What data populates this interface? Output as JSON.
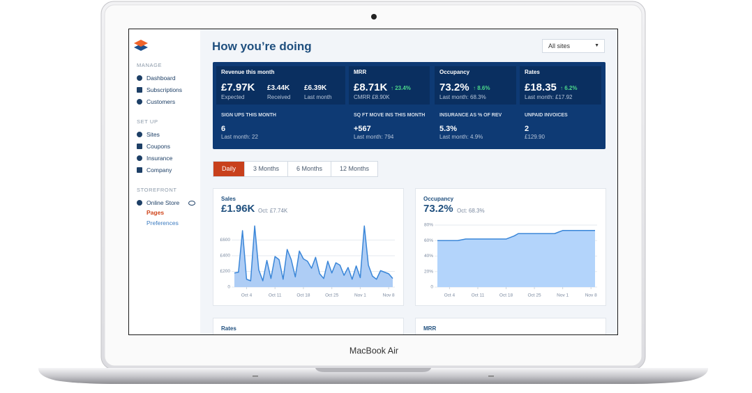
{
  "device_label": "MacBook Air",
  "sidebar": {
    "sections": [
      {
        "heading": "MANAGE",
        "items": [
          "Dashboard",
          "Subscriptions",
          "Customers"
        ]
      },
      {
        "heading": "SET UP",
        "items": [
          "Sites",
          "Coupons",
          "Insurance",
          "Company"
        ]
      },
      {
        "heading": "STOREFRONT",
        "items": [
          "Online Store"
        ],
        "subitems": [
          "Pages",
          "Preferences"
        ],
        "active_subitem": 0
      }
    ]
  },
  "header": {
    "title": "How you’re doing",
    "site_select": "All sites"
  },
  "kpis": {
    "top": [
      {
        "label": "Revenue this month",
        "figures": [
          {
            "value": "£7.97K",
            "caption": "Expected"
          },
          {
            "value": "£3.44K",
            "caption": "Received"
          },
          {
            "value": "£6.39K",
            "caption": "Last month"
          }
        ]
      },
      {
        "label": "MRR",
        "value": "£8.71K",
        "change": "↑ 23.4%",
        "sub": "CMRR £8.90K"
      },
      {
        "label": "Occupancy",
        "value": "73.2%",
        "change": "↑ 8.6%",
        "sub": "Last month: 68.3%"
      },
      {
        "label": "Rates",
        "value": "£18.35",
        "change": "↑ 6.2%",
        "sub": "Last month: £17.92"
      }
    ],
    "bottom": [
      {
        "label": "SIGN UPS THIS MONTH",
        "value": "6",
        "sub": "Last month: 22"
      },
      {
        "label": "SQ FT MOVE INS THIS MONTH",
        "value": "+567",
        "sub": "Last month: 794"
      },
      {
        "label": "INSURANCE AS % OF REV",
        "value": "5.3%",
        "sub": "Last month: 4.9%"
      },
      {
        "label": "UNPAID INVOICES",
        "value": "2",
        "sub": "£129.90"
      }
    ]
  },
  "tabs": [
    "Daily",
    "3 Months",
    "6 Months",
    "12 Months"
  ],
  "active_tab": 0,
  "cards": [
    {
      "title": "Sales",
      "value": "£1.96K",
      "compare": "Oct: £7.74K",
      "chart": {
        "type": "area",
        "color": "#3a86d8",
        "fill": "#aecdf5",
        "grid": true,
        "ylim": [
          0,
          800
        ],
        "yticks": [
          0,
          {
            "value": 200,
            "label": "£200"
          },
          {
            "value": 400,
            "label": "£400"
          },
          {
            "value": 600,
            "label": "£600"
          }
        ],
        "xlim": [
          0,
          39
        ],
        "xticks": [
          {
            "value": 3,
            "label": "Oct 4"
          },
          {
            "value": 10,
            "label": "Oct 11"
          },
          {
            "value": 17,
            "label": "Oct 18"
          },
          {
            "value": 24,
            "label": "Oct 25"
          },
          {
            "value": 31,
            "label": "Nov 1"
          },
          {
            "value": 38,
            "label": "Nov 8"
          }
        ],
        "values": [
          180,
          190,
          720,
          100,
          80,
          780,
          220,
          80,
          340,
          110,
          390,
          350,
          100,
          480,
          350,
          130,
          460,
          360,
          330,
          240,
          380,
          170,
          110,
          330,
          180,
          310,
          280,
          150,
          250,
          100,
          270,
          120,
          780,
          280,
          140,
          100,
          210,
          190,
          170,
          110
        ]
      }
    },
    {
      "title": "Occupancy",
      "value": "73.2%",
      "compare": "Oct: 68.3%",
      "chart": {
        "type": "area",
        "color": "#3a86d8",
        "fill": "#b3d4fb",
        "grid": true,
        "ylim": [
          0,
          80
        ],
        "yticks": [
          0,
          {
            "value": 20,
            "label": "20%"
          },
          {
            "value": 40,
            "label": "40%"
          },
          {
            "value": 60,
            "label": "60%"
          },
          {
            "value": 80,
            "label": "80%"
          }
        ],
        "xlim": [
          0,
          39
        ],
        "xticks": [
          {
            "value": 3,
            "label": "Oct 4"
          },
          {
            "value": 10,
            "label": "Oct 11"
          },
          {
            "value": 17,
            "label": "Oct 18"
          },
          {
            "value": 24,
            "label": "Oct 25"
          },
          {
            "value": 31,
            "label": "Nov 1"
          },
          {
            "value": 38,
            "label": "Nov 8"
          }
        ],
        "values": [
          60,
          60,
          60,
          60,
          60,
          60,
          61,
          62,
          62,
          62,
          62,
          62,
          62,
          62,
          62,
          62,
          62,
          62,
          64,
          66,
          69,
          69,
          69,
          69,
          69,
          69,
          69,
          69,
          69,
          69,
          71,
          73,
          73,
          73,
          73,
          73,
          73,
          73,
          73,
          73
        ]
      }
    },
    {
      "title": "Rates"
    },
    {
      "title": "MRR"
    }
  ]
}
